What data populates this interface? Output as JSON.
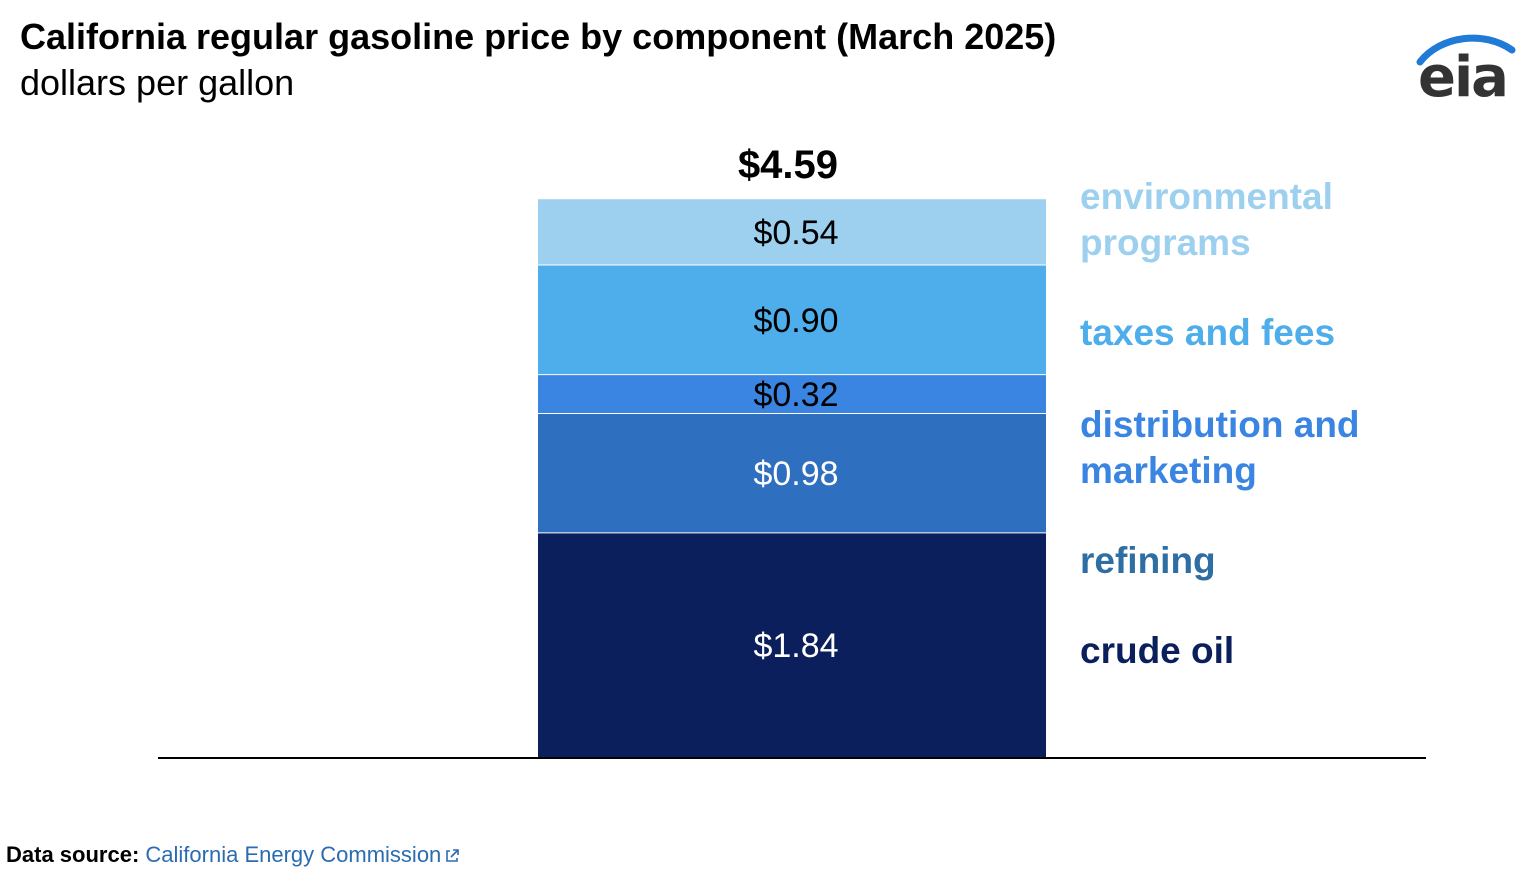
{
  "chart_data": {
    "type": "bar",
    "stacked": true,
    "title": "California regular gasoline price by component (March 2025)",
    "subtitle": "dollars per gallon",
    "total_label": "$4.59",
    "total": 4.59,
    "series": [
      {
        "name": "crude oil",
        "value": 1.84,
        "label": "$1.84",
        "color": "#0b1f5c",
        "label_color": "#ffffff",
        "legend_color": "#0b1f5c",
        "legend_lines": [
          "crude oil"
        ]
      },
      {
        "name": "refining",
        "value": 0.98,
        "label": "$0.98",
        "color": "#2f6fbf",
        "label_color": "#ffffff",
        "legend_color": "#2e6ea3",
        "legend_lines": [
          "refining"
        ]
      },
      {
        "name": "distribution and marketing",
        "value": 0.32,
        "label": "$0.32",
        "color": "#3a84e2",
        "label_color": "#000000",
        "legend_color": "#3a84e2",
        "legend_lines": [
          "distribution and",
          "marketing"
        ]
      },
      {
        "name": "taxes and fees",
        "value": 0.9,
        "label": "$0.90",
        "color": "#4eadeb",
        "label_color": "#000000",
        "legend_color": "#4eadeb",
        "legend_lines": [
          "taxes and fees"
        ]
      },
      {
        "name": "environmental programs",
        "value": 0.54,
        "label": "$0.54",
        "color": "#9dd0ef",
        "label_color": "#000000",
        "legend_color": "#9dd0ef",
        "legend_lines": [
          "environmental",
          "programs"
        ]
      }
    ]
  },
  "logo": {
    "text": "eia",
    "arc_color": "#1f7bd6"
  },
  "source": {
    "label": "Data source:",
    "link_text": "California Energy Commission",
    "link_icon": "external-link-icon"
  }
}
